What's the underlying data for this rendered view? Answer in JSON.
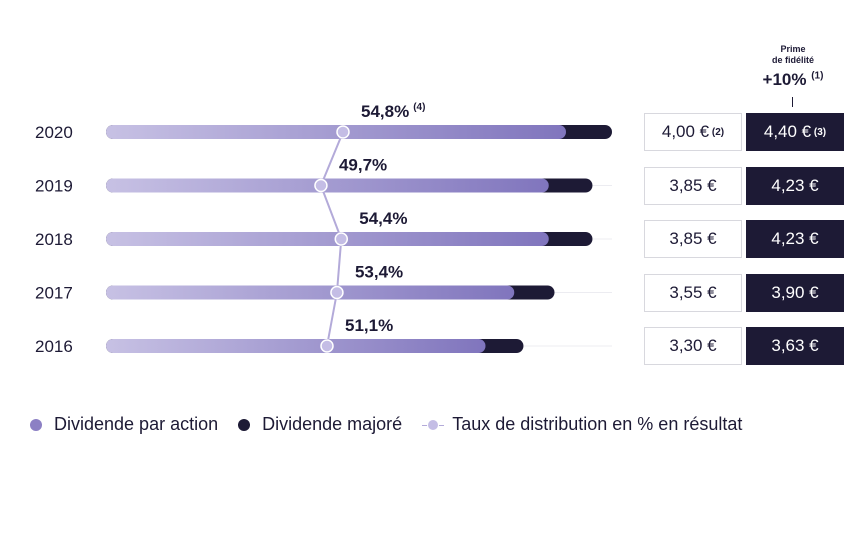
{
  "chart_data": {
    "type": "bar",
    "orientation": "horizontal",
    "stacked": true,
    "categories": [
      "2020",
      "2019",
      "2018",
      "2017",
      "2016"
    ],
    "series": [
      {
        "name": "Dividende par action",
        "values": [
          4.0,
          3.85,
          3.85,
          3.55,
          3.3
        ],
        "labels": [
          "4,00 €",
          "3,85 €",
          "3,85 €",
          "3,55 €",
          "3,30 €"
        ],
        "color": "#8c80c4"
      },
      {
        "name": "Dividende majoré",
        "values": [
          4.4,
          4.23,
          4.23,
          3.9,
          3.63
        ],
        "labels": [
          "4,40 €",
          "4,23 €",
          "4,23 €",
          "3,90 €",
          "3,63 €"
        ],
        "color": "#1d1a35"
      },
      {
        "name": "Taux de distribution en % en résultat",
        "values": [
          54.8,
          49.7,
          54.4,
          53.4,
          51.1
        ],
        "labels": [
          "54,8%",
          "49,7%",
          "54,4%",
          "53,4%",
          "51,1%"
        ],
        "color": "#b3aad9"
      }
    ],
    "footnotes": {
      "payout_2020": "(4)",
      "dpa_2020": "(2)",
      "majore_2020": "(3)"
    },
    "legend": "bottom"
  },
  "prime": {
    "line1": "Prime",
    "line2": "de fidélité",
    "pct": "+10%",
    "note": "(1)"
  },
  "legend": {
    "dpa": "Dividende par action",
    "majore": "Dividende majoré",
    "taux": "Taux de distribution en % en résultat"
  },
  "colors": {
    "dpa": "#8c80c4",
    "majore": "#1d1a35",
    "taux": "#b3aad9"
  }
}
